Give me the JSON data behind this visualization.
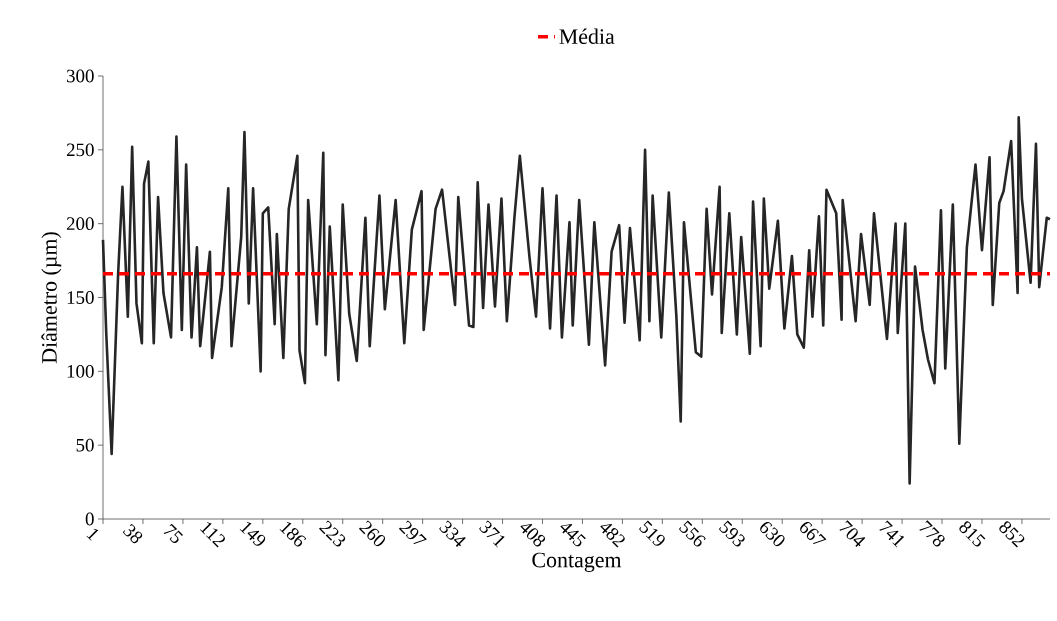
{
  "chart_data": {
    "type": "line",
    "xlabel": "Contagem",
    "ylabel": "Diâmetro (µm)",
    "x": [
      1,
      4,
      9,
      15,
      19,
      24,
      28,
      32,
      37,
      39,
      43,
      48,
      52,
      57,
      64,
      69,
      74,
      78,
      83,
      88,
      91,
      100,
      102,
      111,
      117,
      120,
      129,
      132,
      136,
      140,
      147,
      149,
      154,
      160,
      162,
      168,
      173,
      181,
      183,
      188,
      191,
      199,
      205,
      207,
      211,
      219,
      223,
      229,
      236,
      244,
      248,
      257,
      262,
      272,
      280,
      287,
      296,
      298,
      309,
      315,
      327,
      330,
      340,
      344,
      348,
      353,
      358,
      364,
      370,
      375,
      382,
      387,
      396,
      402,
      408,
      415,
      421,
      426,
      433,
      436,
      442,
      451,
      456,
      466,
      472,
      479,
      484,
      489,
      498,
      503,
      507,
      510,
      518,
      525,
      532,
      536,
      539,
      550,
      555,
      560,
      565,
      572,
      574,
      581,
      588,
      592,
      600,
      603,
      610,
      613,
      618,
      626,
      632,
      639,
      644,
      650,
      655,
      658,
      664,
      668,
      671,
      680,
      685,
      686,
      698,
      703,
      711,
      715,
      727,
      735,
      737,
      744,
      748,
      753,
      760,
      765,
      771,
      777,
      781,
      788,
      794,
      801,
      809,
      815,
      822,
      825,
      831,
      835,
      842,
      848,
      849,
      852,
      860,
      865,
      868,
      875,
      878
    ],
    "values": [
      189,
      126,
      44,
      166,
      225,
      137,
      252,
      146,
      119,
      227,
      242,
      119,
      218,
      153,
      123,
      259,
      128,
      240,
      123,
      184,
      117,
      181,
      109,
      157,
      224,
      117,
      191,
      262,
      146,
      224,
      100,
      207,
      211,
      132,
      193,
      109,
      210,
      246,
      114,
      92,
      216,
      132,
      248,
      111,
      198,
      94,
      213,
      139,
      107,
      204,
      117,
      219,
      142,
      216,
      119,
      196,
      222,
      128,
      210,
      223,
      145,
      218,
      131,
      130,
      228,
      143,
      213,
      144,
      217,
      134,
      204,
      246,
      177,
      137,
      224,
      129,
      219,
      123,
      201,
      131,
      216,
      118,
      201,
      104,
      181,
      199,
      133,
      197,
      121,
      250,
      134,
      219,
      123,
      221,
      137,
      66,
      201,
      113,
      110,
      210,
      152,
      225,
      126,
      207,
      125,
      191,
      112,
      215,
      117,
      217,
      156,
      202,
      129,
      178,
      125,
      116,
      182,
      137,
      205,
      131,
      223,
      207,
      135,
      216,
      134,
      193,
      145,
      207,
      122,
      200,
      126,
      200,
      24,
      171,
      128,
      108,
      92,
      209,
      102,
      213,
      51,
      184,
      240,
      182,
      245,
      145,
      214,
      222,
      256,
      153,
      272,
      217,
      160,
      254,
      157,
      204,
      203
    ],
    "color": "#262626",
    "xlim": [
      1,
      878
    ],
    "ylim": [
      0,
      300
    ],
    "xticks": [
      1,
      38,
      75,
      112,
      149,
      186,
      223,
      260,
      297,
      334,
      371,
      408,
      445,
      482,
      519,
      556,
      593,
      630,
      667,
      704,
      741,
      778,
      815,
      852
    ],
    "yticks": [
      0,
      50,
      100,
      150,
      200,
      250,
      300
    ],
    "ref_lines": [
      {
        "axis": "y",
        "value": 166,
        "label": "Média",
        "color": "#ff0000",
        "line_style": "dashed"
      }
    ],
    "legend": "top"
  }
}
